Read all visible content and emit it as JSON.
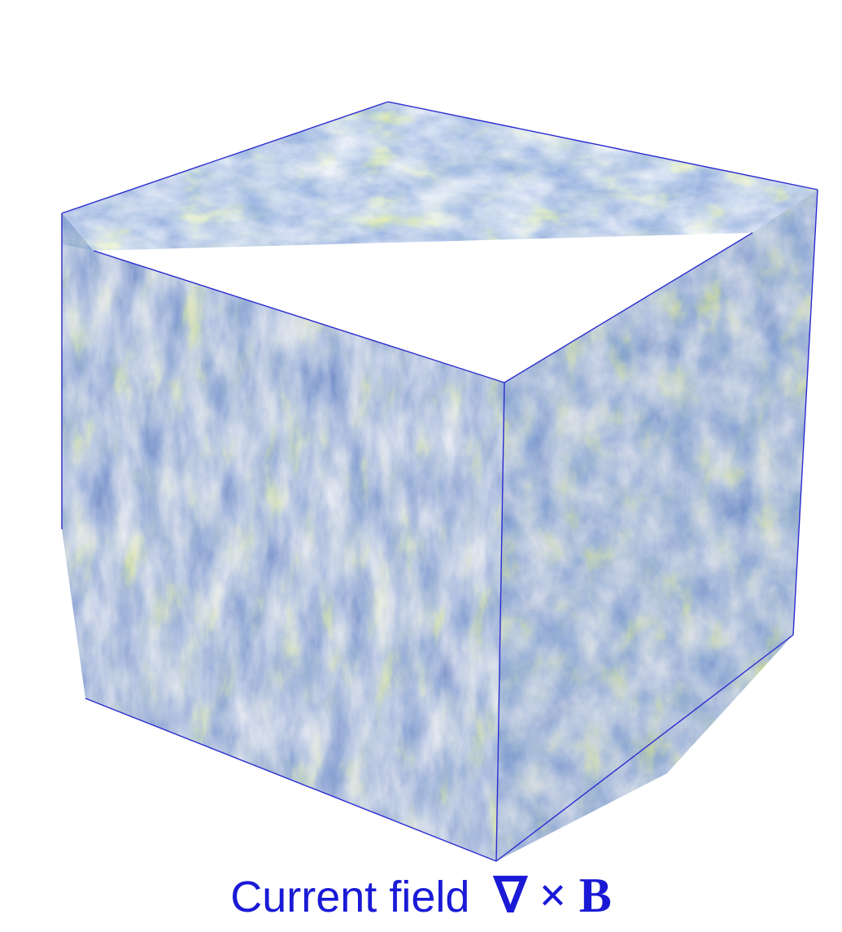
{
  "caption": {
    "label": "Current field",
    "formula": "∇ × B"
  },
  "cube": {
    "edge_color": "#2b2bd0",
    "colormap": [
      "#1a2f6e",
      "#27468f",
      "#3b64b0",
      "#56b0a0",
      "#c9d64a",
      "#e58a2d"
    ]
  }
}
